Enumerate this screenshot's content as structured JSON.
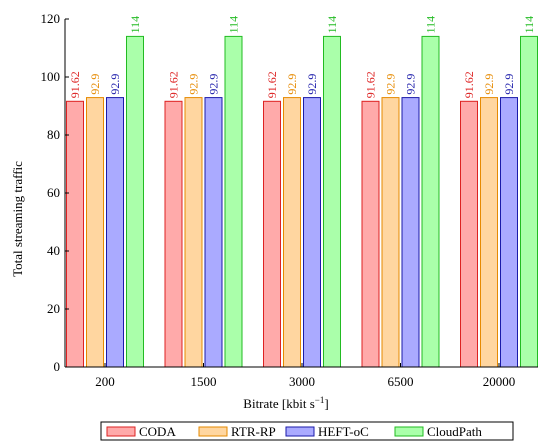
{
  "chart_data": {
    "type": "bar",
    "title": "",
    "xlabel": "Bitrate [kbit s",
    "xlabel_sup": "−1",
    "xlabel_close": "]",
    "ylabel": "Total streaming traffic",
    "ylim": [
      0,
      120
    ],
    "yticks": [
      "0",
      "20",
      "40",
      "60",
      "80",
      "100",
      "120"
    ],
    "categories": [
      "200",
      "1500",
      "3000",
      "6500",
      "20000"
    ],
    "series": [
      {
        "name": "CODA",
        "values": [
          91.62,
          91.62,
          91.62,
          91.62,
          91.62
        ],
        "labels": [
          "91.62",
          "91.62",
          "91.62",
          "91.62",
          "91.62"
        ],
        "fill": "#ffaaaa",
        "stroke": "#dd2222",
        "text": "#dd2222"
      },
      {
        "name": "RTR-RP",
        "values": [
          92.9,
          92.9,
          92.9,
          92.9,
          92.9
        ],
        "labels": [
          "92.9",
          "92.9",
          "92.9",
          "92.9",
          "92.9"
        ],
        "fill": "#ffd6a0",
        "stroke": "#e68a00",
        "text": "#e68a00"
      },
      {
        "name": "HEFT-oC",
        "values": [
          92.9,
          92.9,
          92.9,
          92.9,
          92.9
        ],
        "labels": [
          "92.9",
          "92.9",
          "92.9",
          "92.9",
          "92.9"
        ],
        "fill": "#aaaaff",
        "stroke": "#1a1aaa",
        "text": "#1a1aaa"
      },
      {
        "name": "CloudPath",
        "values": [
          114,
          114,
          114,
          114,
          114
        ],
        "labels": [
          "114",
          "114",
          "114",
          "114",
          "114"
        ],
        "fill": "#aaffaa",
        "stroke": "#22bb22",
        "text": "#22bb22"
      }
    ],
    "grid": false,
    "legend_position": "bottom"
  }
}
